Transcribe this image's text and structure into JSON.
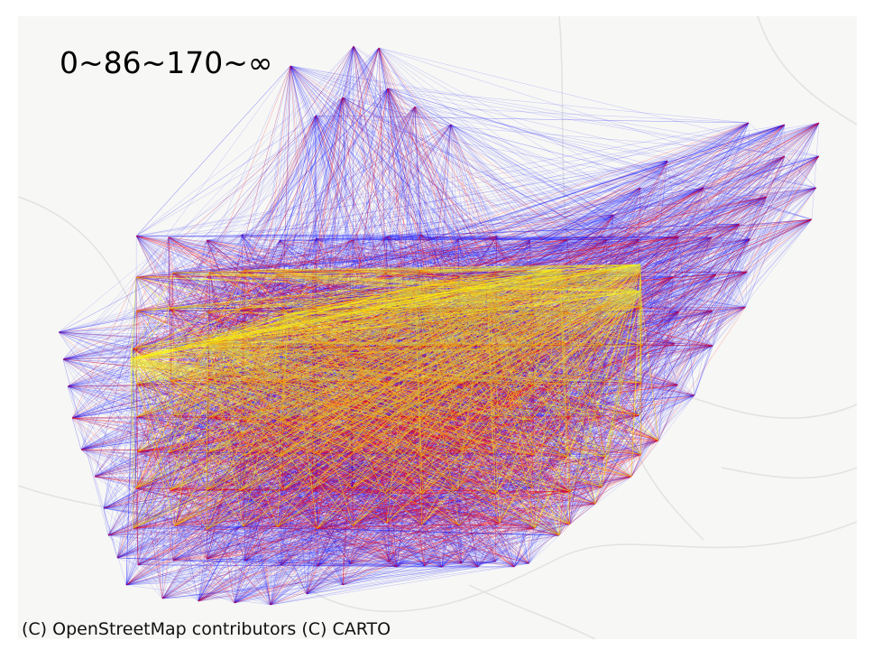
{
  "legend": {
    "bins_label": "0~86~170~∞"
  },
  "attribution": {
    "text": "(C) OpenStreetMap contributors (C) CARTO"
  },
  "colors": {
    "low_flow": "#0000ff",
    "mid_flow": "#ff0000",
    "high_flow": "#ffff00",
    "basemap_background": "#f7f7f5",
    "basemap_roads": "#e2e2e2"
  },
  "flow_classes": [
    {
      "range": "0~86",
      "color": "#0000ff"
    },
    {
      "range": "86~170",
      "color": "#ff0000"
    },
    {
      "range": "170~∞",
      "color": "#ffff00"
    }
  ]
}
